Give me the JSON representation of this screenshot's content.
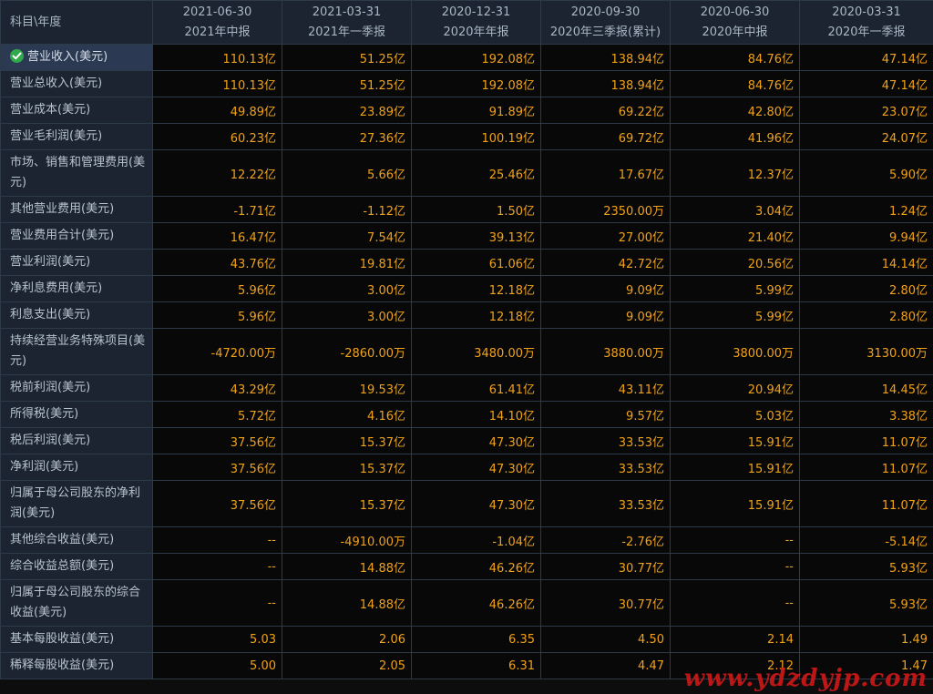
{
  "corner_label": "科目\\年度",
  "columns": [
    {
      "date": "2021-06-30",
      "period": "2021年中报"
    },
    {
      "date": "2021-03-31",
      "period": "2021年一季报"
    },
    {
      "date": "2020-12-31",
      "period": "2020年年报"
    },
    {
      "date": "2020-09-30",
      "period": "2020年三季报(累计)"
    },
    {
      "date": "2020-06-30",
      "period": "2020年中报"
    },
    {
      "date": "2020-03-31",
      "period": "2020年一季报"
    }
  ],
  "rows": [
    {
      "label": "营业收入(美元)",
      "selected": true,
      "icon": "check-circle-icon",
      "values": [
        "110.13亿",
        "51.25亿",
        "192.08亿",
        "138.94亿",
        "84.76亿",
        "47.14亿"
      ]
    },
    {
      "label": "营业总收入(美元)",
      "values": [
        "110.13亿",
        "51.25亿",
        "192.08亿",
        "138.94亿",
        "84.76亿",
        "47.14亿"
      ]
    },
    {
      "label": "营业成本(美元)",
      "values": [
        "49.89亿",
        "23.89亿",
        "91.89亿",
        "69.22亿",
        "42.80亿",
        "23.07亿"
      ]
    },
    {
      "label": "营业毛利润(美元)",
      "values": [
        "60.23亿",
        "27.36亿",
        "100.19亿",
        "69.72亿",
        "41.96亿",
        "24.07亿"
      ]
    },
    {
      "label": "市场、销售和管理费用(美元)",
      "tall": true,
      "values": [
        "12.22亿",
        "5.66亿",
        "25.46亿",
        "17.67亿",
        "12.37亿",
        "5.90亿"
      ]
    },
    {
      "label": "其他营业费用(美元)",
      "values": [
        "-1.71亿",
        "-1.12亿",
        "1.50亿",
        "2350.00万",
        "3.04亿",
        "1.24亿"
      ]
    },
    {
      "label": "营业费用合计(美元)",
      "values": [
        "16.47亿",
        "7.54亿",
        "39.13亿",
        "27.00亿",
        "21.40亿",
        "9.94亿"
      ]
    },
    {
      "label": "营业利润(美元)",
      "values": [
        "43.76亿",
        "19.81亿",
        "61.06亿",
        "42.72亿",
        "20.56亿",
        "14.14亿"
      ]
    },
    {
      "label": "净利息费用(美元)",
      "values": [
        "5.96亿",
        "3.00亿",
        "12.18亿",
        "9.09亿",
        "5.99亿",
        "2.80亿"
      ]
    },
    {
      "label": "利息支出(美元)",
      "values": [
        "5.96亿",
        "3.00亿",
        "12.18亿",
        "9.09亿",
        "5.99亿",
        "2.80亿"
      ]
    },
    {
      "label": "持续经营业务特殊项目(美元)",
      "tall": true,
      "values": [
        "-4720.00万",
        "-2860.00万",
        "3480.00万",
        "3880.00万",
        "3800.00万",
        "3130.00万"
      ]
    },
    {
      "label": "税前利润(美元)",
      "values": [
        "43.29亿",
        "19.53亿",
        "61.41亿",
        "43.11亿",
        "20.94亿",
        "14.45亿"
      ]
    },
    {
      "label": "所得税(美元)",
      "values": [
        "5.72亿",
        "4.16亿",
        "14.10亿",
        "9.57亿",
        "5.03亿",
        "3.38亿"
      ]
    },
    {
      "label": "税后利润(美元)",
      "values": [
        "37.56亿",
        "15.37亿",
        "47.30亿",
        "33.53亿",
        "15.91亿",
        "11.07亿"
      ]
    },
    {
      "label": "净利润(美元)",
      "values": [
        "37.56亿",
        "15.37亿",
        "47.30亿",
        "33.53亿",
        "15.91亿",
        "11.07亿"
      ]
    },
    {
      "label": "归属于母公司股东的净利润(美元)",
      "tall": true,
      "values": [
        "37.56亿",
        "15.37亿",
        "47.30亿",
        "33.53亿",
        "15.91亿",
        "11.07亿"
      ]
    },
    {
      "label": "其他综合收益(美元)",
      "values": [
        "--",
        "-4910.00万",
        "-1.04亿",
        "-2.76亿",
        "--",
        "-5.14亿"
      ]
    },
    {
      "label": "综合收益总额(美元)",
      "values": [
        "--",
        "14.88亿",
        "46.26亿",
        "30.77亿",
        "--",
        "5.93亿"
      ]
    },
    {
      "label": "归属于母公司股东的综合收益(美元)",
      "tall": true,
      "values": [
        "--",
        "14.88亿",
        "46.26亿",
        "30.77亿",
        "--",
        "5.93亿"
      ]
    },
    {
      "label": "基本每股收益(美元)",
      "values": [
        "5.03",
        "2.06",
        "6.35",
        "4.50",
        "2.14",
        "1.49"
      ]
    },
    {
      "label": "稀释每股收益(美元)",
      "values": [
        "5.00",
        "2.05",
        "6.31",
        "4.47",
        "2.12",
        "1.47"
      ]
    }
  ],
  "watermark": "www.ydzdyjp.com",
  "colors": {
    "value": "#f0a21a",
    "label": "#b7c3cf",
    "header_bg": "#1b2430",
    "selected_bg": "#2b3a52",
    "check": "#2fa94a",
    "watermark": "#d01818"
  }
}
